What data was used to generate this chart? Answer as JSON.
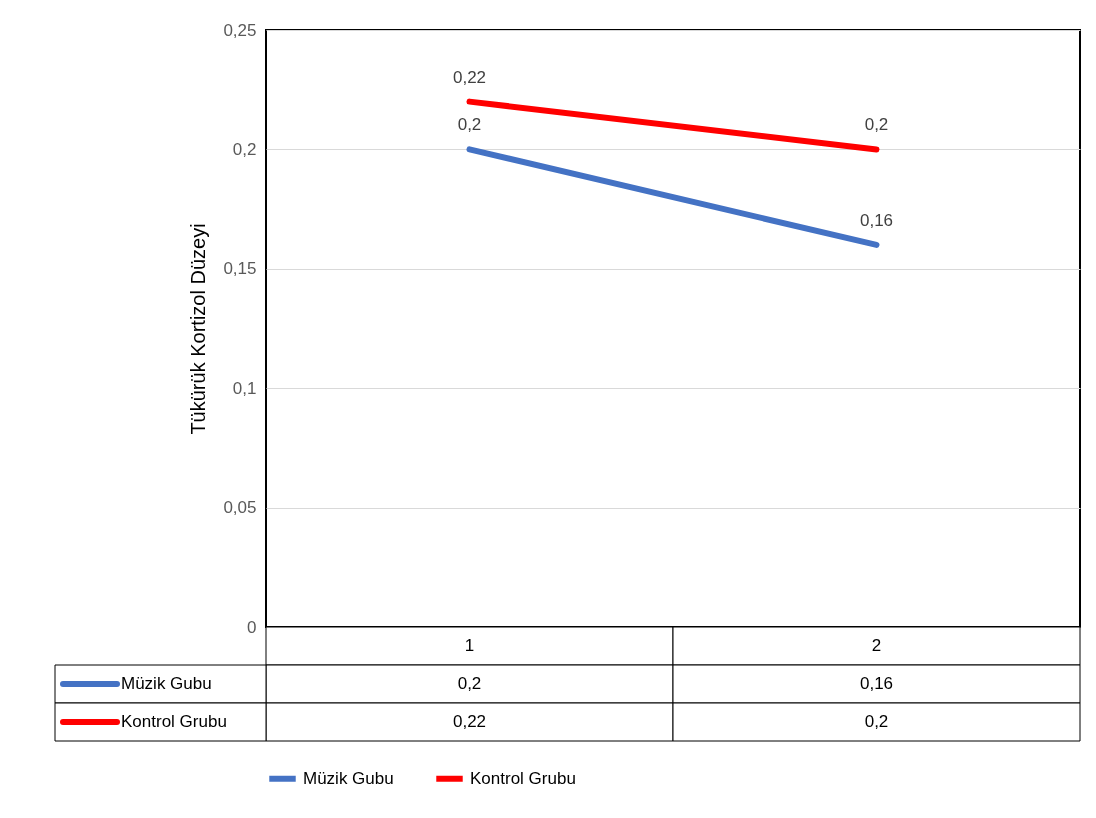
{
  "chart_data": {
    "type": "line",
    "ylabel": "Tükürük Kortizol Düzeyi",
    "categories": [
      "1",
      "2"
    ],
    "series": [
      {
        "name": "Müzik Gubu",
        "color": "#4472c4",
        "values": [
          0.2,
          0.16
        ],
        "value_labels": [
          "0,2",
          "0,16"
        ]
      },
      {
        "name": "Kontrol Grubu",
        "color": "#ff0000",
        "values": [
          0.22,
          0.2
        ],
        "value_labels": [
          "0,22",
          "0,2"
        ]
      }
    ],
    "ylim": [
      0,
      0.25
    ],
    "yticks": [
      0,
      {
        "value": 0.05,
        "label": "0,05"
      },
      {
        "value": 0.1,
        "label": "0,1"
      },
      {
        "value": 0.15,
        "label": "0,15"
      },
      {
        "value": 0.2,
        "label": "0,2"
      },
      {
        "value": 0.25,
        "label": "0,25"
      }
    ],
    "grid": "y",
    "legend": "bottom"
  }
}
